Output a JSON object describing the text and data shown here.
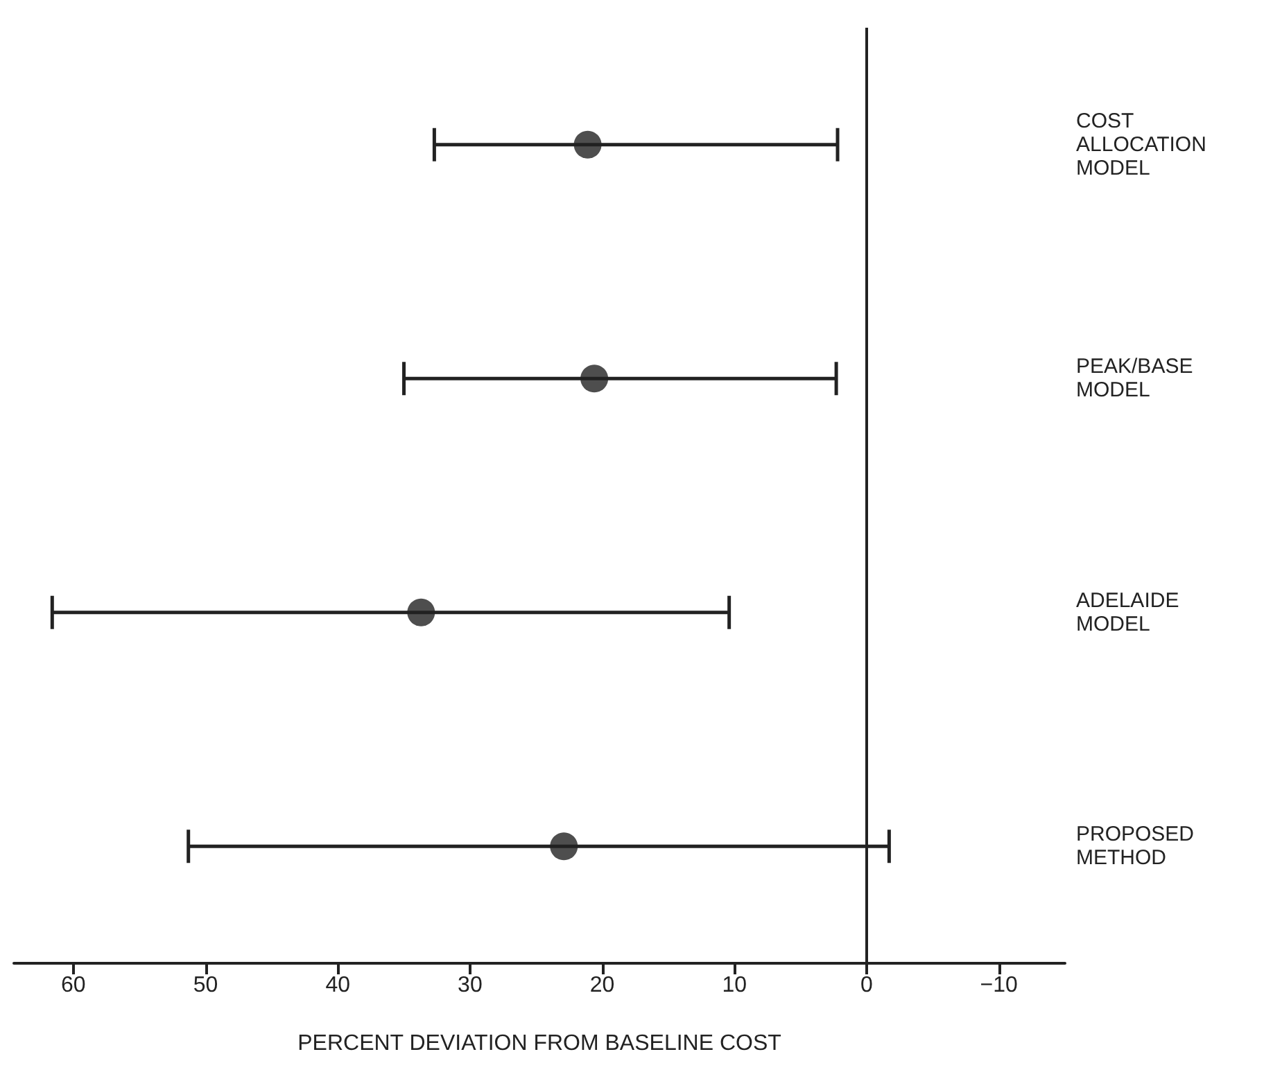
{
  "chart_data": {
    "type": "scatter",
    "orientation": "horizontal",
    "xlabel": "PERCENT DEVIATION FROM BASELINE COST",
    "categories": [
      "COST ALLOCATION MODEL",
      "PEAK/BASE MODEL",
      "ADELAIDE MODEL",
      "PROPOSED METHOD"
    ],
    "values": [
      21.1,
      20.6,
      33.7,
      22.9
    ],
    "errors": [
      [
        2.2,
        32.7
      ],
      [
        2.3,
        35.0
      ],
      [
        10.4,
        61.6
      ],
      [
        -1.7,
        51.3
      ]
    ],
    "color": "#222222",
    "marker": "circle",
    "xlim": [
      64.5,
      -15
    ],
    "xticks": [
      60,
      50,
      40,
      30,
      20,
      10,
      0,
      {
        "value": -10,
        "label": "−10"
      }
    ],
    "ref_lines": [
      {
        "axis": "x",
        "value": 0,
        "color": "#222222"
      }
    ],
    "grid": false,
    "legend": false
  }
}
